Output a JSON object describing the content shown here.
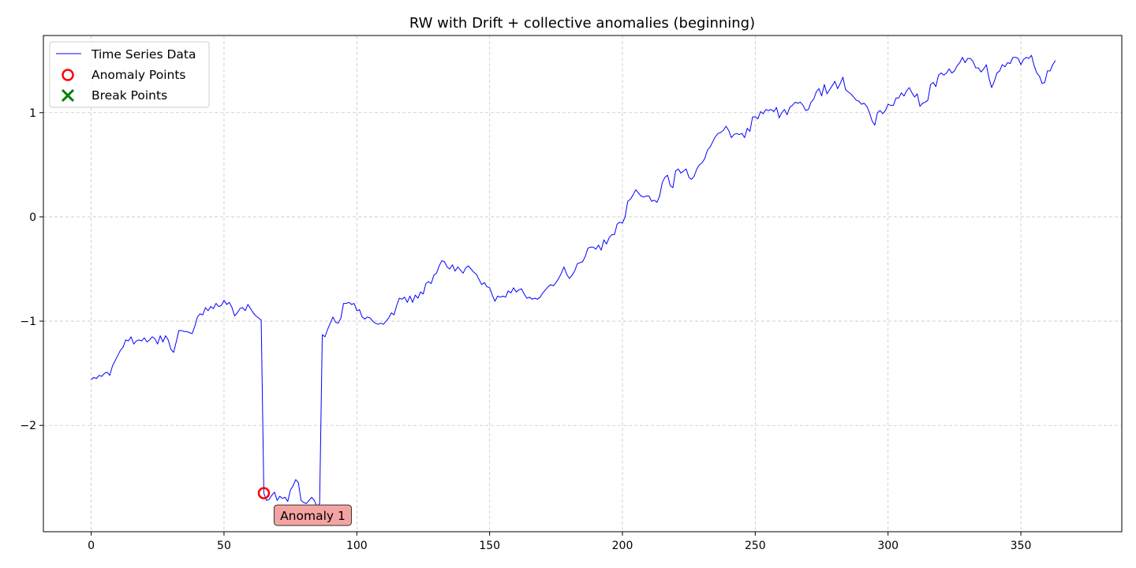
{
  "chart_data": {
    "type": "line",
    "title": "RW with Drift + collective anomalies (beginning)",
    "xlim": [
      -18,
      388
    ],
    "ylim": [
      -3.02,
      1.74
    ],
    "x_ticks": [
      0,
      50,
      100,
      150,
      200,
      250,
      300,
      350
    ],
    "y_ticks": [
      -2,
      -1,
      0,
      1
    ],
    "y_tick_labels": [
      "−2",
      "−1",
      "0",
      "1"
    ],
    "grid": true,
    "legend": {
      "placement": "top-left",
      "entries": [
        {
          "label": "Time Series Data",
          "kind": "line",
          "color": "#0000ff"
        },
        {
          "label": "Anomaly Points",
          "kind": "circle",
          "color": "#ff0000"
        },
        {
          "label": "Break Points",
          "kind": "x",
          "color": "#008000"
        }
      ]
    },
    "series": [
      {
        "name": "Time Series Data",
        "color": "#0000ff",
        "x_start": 0,
        "x_step": 1,
        "values": [
          -1.56,
          -1.54,
          -1.55,
          -1.52,
          -1.53,
          -1.5,
          -1.49,
          -1.52,
          -1.43,
          -1.38,
          -1.33,
          -1.28,
          -1.25,
          -1.18,
          -1.19,
          -1.15,
          -1.22,
          -1.19,
          -1.18,
          -1.19,
          -1.16,
          -1.2,
          -1.18,
          -1.15,
          -1.17,
          -1.22,
          -1.14,
          -1.2,
          -1.14,
          -1.18,
          -1.27,
          -1.3,
          -1.2,
          -1.09,
          -1.09,
          -1.1,
          -1.1,
          -1.11,
          -1.12,
          -1.05,
          -0.96,
          -0.93,
          -0.94,
          -0.87,
          -0.9,
          -0.86,
          -0.88,
          -0.83,
          -0.86,
          -0.85,
          -0.8,
          -0.84,
          -0.82,
          -0.87,
          -0.95,
          -0.92,
          -0.88,
          -0.87,
          -0.9,
          -0.84,
          -0.88,
          -0.92,
          -0.95,
          -0.97,
          -0.99,
          -2.65,
          -2.72,
          -2.71,
          -2.67,
          -2.64,
          -2.72,
          -2.68,
          -2.7,
          -2.69,
          -2.73,
          -2.62,
          -2.58,
          -2.52,
          -2.55,
          -2.72,
          -2.74,
          -2.75,
          -2.72,
          -2.69,
          -2.72,
          -2.78,
          -2.75,
          -1.13,
          -1.15,
          -1.08,
          -1.02,
          -0.96,
          -1.01,
          -1.02,
          -0.97,
          -0.83,
          -0.83,
          -0.82,
          -0.84,
          -0.83,
          -0.9,
          -0.89,
          -0.96,
          -0.98,
          -0.96,
          -0.97,
          -1.0,
          -1.02,
          -1.03,
          -1.02,
          -1.03,
          -1.0,
          -0.97,
          -0.92,
          -0.94,
          -0.85,
          -0.78,
          -0.79,
          -0.77,
          -0.82,
          -0.76,
          -0.82,
          -0.75,
          -0.78,
          -0.72,
          -0.74,
          -0.64,
          -0.62,
          -0.64,
          -0.56,
          -0.54,
          -0.47,
          -0.42,
          -0.43,
          -0.48,
          -0.5,
          -0.46,
          -0.52,
          -0.48,
          -0.51,
          -0.54,
          -0.49,
          -0.47,
          -0.5,
          -0.53,
          -0.55,
          -0.6,
          -0.65,
          -0.63,
          -0.67,
          -0.68,
          -0.75,
          -0.81,
          -0.76,
          -0.77,
          -0.76,
          -0.77,
          -0.71,
          -0.73,
          -0.68,
          -0.72,
          -0.7,
          -0.69,
          -0.74,
          -0.78,
          -0.77,
          -0.79,
          -0.78,
          -0.79,
          -0.77,
          -0.73,
          -0.7,
          -0.67,
          -0.65,
          -0.66,
          -0.63,
          -0.59,
          -0.54,
          -0.48,
          -0.55,
          -0.59,
          -0.56,
          -0.52,
          -0.45,
          -0.44,
          -0.43,
          -0.38,
          -0.3,
          -0.29,
          -0.29,
          -0.31,
          -0.27,
          -0.32,
          -0.22,
          -0.26,
          -0.2,
          -0.17,
          -0.17,
          -0.07,
          -0.05,
          -0.06,
          0.0,
          0.15,
          0.17,
          0.21,
          0.26,
          0.23,
          0.2,
          0.19,
          0.2,
          0.2,
          0.15,
          0.16,
          0.14,
          0.2,
          0.33,
          0.38,
          0.4,
          0.3,
          0.28,
          0.44,
          0.46,
          0.42,
          0.44,
          0.46,
          0.38,
          0.36,
          0.39,
          0.46,
          0.5,
          0.52,
          0.56,
          0.64,
          0.67,
          0.72,
          0.77,
          0.8,
          0.81,
          0.83,
          0.87,
          0.83,
          0.76,
          0.79,
          0.8,
          0.79,
          0.8,
          0.76,
          0.85,
          0.82,
          0.96,
          0.96,
          0.94,
          1.01,
          0.99,
          1.03,
          1.02,
          1.03,
          1.01,
          1.05,
          0.95,
          1.0,
          1.03,
          0.98,
          1.05,
          1.07,
          1.1,
          1.09,
          1.1,
          1.07,
          1.02,
          1.03,
          1.1,
          1.13,
          1.2,
          1.23,
          1.16,
          1.27,
          1.18,
          1.22,
          1.26,
          1.3,
          1.23,
          1.28,
          1.34,
          1.22,
          1.2,
          1.18,
          1.15,
          1.12,
          1.11,
          1.08,
          1.09,
          1.06,
          1.0,
          0.92,
          0.88,
          1.0,
          1.02,
          0.99,
          1.02,
          1.08,
          1.07,
          1.07,
          1.14,
          1.14,
          1.19,
          1.16,
          1.21,
          1.24,
          1.19,
          1.15,
          1.18,
          1.06,
          1.09,
          1.1,
          1.12,
          1.27,
          1.29,
          1.25,
          1.36,
          1.38,
          1.36,
          1.38,
          1.42,
          1.38,
          1.4,
          1.45,
          1.48,
          1.53,
          1.48,
          1.52,
          1.52,
          1.49,
          1.43,
          1.43,
          1.39,
          1.42,
          1.46,
          1.33,
          1.24,
          1.3,
          1.38,
          1.4,
          1.46,
          1.44,
          1.48,
          1.47,
          1.53,
          1.53,
          1.52,
          1.46,
          1.51,
          1.53,
          1.52,
          1.55,
          1.45,
          1.38,
          1.35,
          1.28,
          1.29,
          1.4,
          1.4,
          1.46,
          1.5
        ]
      }
    ],
    "anomaly_points": [
      {
        "x": 65,
        "y": -2.65
      }
    ],
    "annotations": [
      {
        "text": "Anomaly 1",
        "x": 65,
        "y": -2.65
      }
    ]
  }
}
